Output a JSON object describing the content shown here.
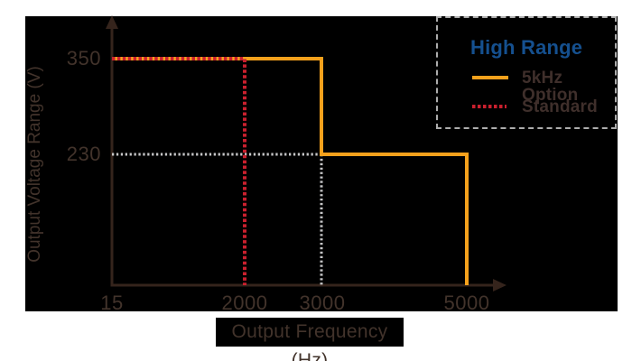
{
  "chart_data": {
    "type": "line",
    "title": "",
    "xlabel": "Output Frequency (Hz)",
    "ylabel": "Output Voltage Range (V)",
    "x_ticks": [
      "15",
      "2000",
      "3000",
      "5000"
    ],
    "y_ticks": [
      "350",
      "230"
    ],
    "x_axis_values": [
      15,
      2000,
      3000,
      5000
    ],
    "y_axis_values": [
      350,
      230
    ],
    "grid": "off",
    "background_color": "#000000",
    "axis_color": "#35241C",
    "text_color": "#42332B",
    "legend": {
      "position": "top-right",
      "title": "High Range",
      "title_color": "#15508F",
      "entries": [
        {
          "label": "5kHz Option",
          "color": "#F5A11C",
          "style": "solid"
        },
        {
          "label": "Standard",
          "color": "#C9202E",
          "style": "dashed"
        }
      ]
    },
    "series": [
      {
        "name": "5kHz Option",
        "color": "#F5A11C",
        "style": "solid",
        "points": [
          [
            15,
            350
          ],
          [
            3000,
            350
          ],
          [
            3000,
            230
          ],
          [
            5000,
            230
          ],
          [
            5000,
            0
          ]
        ]
      },
      {
        "name": "Standard",
        "color": "#C9202E",
        "style": "dashed",
        "points": [
          [
            15,
            350
          ],
          [
            2000,
            350
          ],
          [
            2000,
            0
          ]
        ]
      }
    ],
    "guides": [
      {
        "name": "guide-230-horizontal",
        "color": "#C6C6C7",
        "style": "dotted",
        "points": [
          [
            15,
            230
          ],
          [
            3000,
            230
          ]
        ]
      },
      {
        "name": "guide-3000-vertical",
        "color": "#C6C6C7",
        "style": "dotted",
        "points": [
          [
            3000,
            230
          ],
          [
            3000,
            0
          ]
        ]
      }
    ]
  }
}
